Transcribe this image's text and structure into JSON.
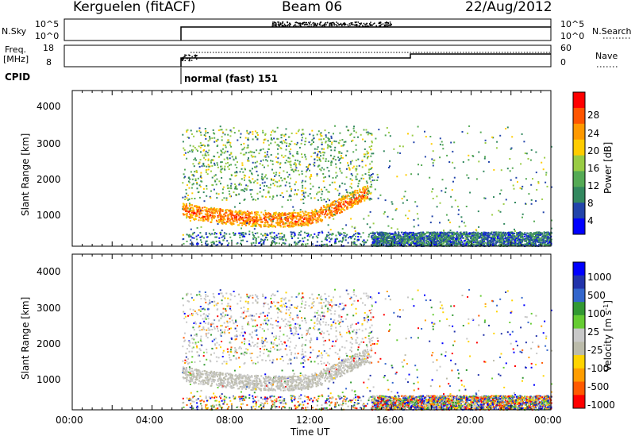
{
  "header": {
    "station": "Kerguelen (fitACF)",
    "beam": "Beam 06",
    "date": "22/Aug/2012"
  },
  "top_panel": {
    "left_label": "N.Sky",
    "right_label": "N.Search",
    "left_ticks": [
      "10^5",
      "10^0"
    ],
    "right_ticks": [
      "10^5",
      "10^0"
    ]
  },
  "freq_panel": {
    "left_label_line1": "Freq.",
    "left_label_line2": "[MHz]",
    "right_label": "Nave",
    "left_ticks": [
      "18",
      "8"
    ],
    "right_ticks": [
      "60",
      "0"
    ]
  },
  "cpid": {
    "label": "CPID",
    "mode": "normal (fast) 151"
  },
  "colors": {
    "power": [
      "#0000ff",
      "#2244aa",
      "#33885f",
      "#55aa55",
      "#99cc44",
      "#ffcc00",
      "#ff9900",
      "#ff5500",
      "#ff0000"
    ],
    "velocity": [
      "#ff0000",
      "#ff5a00",
      "#ff9d00",
      "#ffd400",
      "#bbbbaa",
      "#c8c8c8",
      "#66cc33",
      "#339933",
      "#3366cc",
      "#2233aa",
      "#0000ff"
    ]
  },
  "chart_data": [
    {
      "type": "heatmap",
      "name": "power",
      "ylabel": "Slant Range [km]",
      "yticks": [
        "4000",
        "3000",
        "2000",
        "1000"
      ],
      "ylim": [
        180,
        4580
      ],
      "colorbar_label": "Power [dB]",
      "colorbar_ticks": [
        "28",
        "24",
        "20",
        "16",
        "12",
        "8",
        "4"
      ],
      "colorbar_range": [
        0,
        32
      ]
    },
    {
      "type": "heatmap",
      "name": "velocity",
      "ylabel": "Slant Range [km]",
      "yticks": [
        "4000",
        "3000",
        "2000",
        "1000"
      ],
      "ylim": [
        180,
        4580
      ],
      "colorbar_label": "Velocity [m s",
      "colorbar_label_sup": "-1",
      "colorbar_ticks": [
        "1000",
        "500",
        "100",
        "25",
        "-25",
        "-100",
        "-500",
        "-1000"
      ]
    }
  ],
  "x_axis": {
    "label": "Time UT",
    "ticks": [
      "00:00",
      "04:00",
      "08:00",
      "12:00",
      "16:00",
      "20:00",
      "00:00"
    ]
  }
}
